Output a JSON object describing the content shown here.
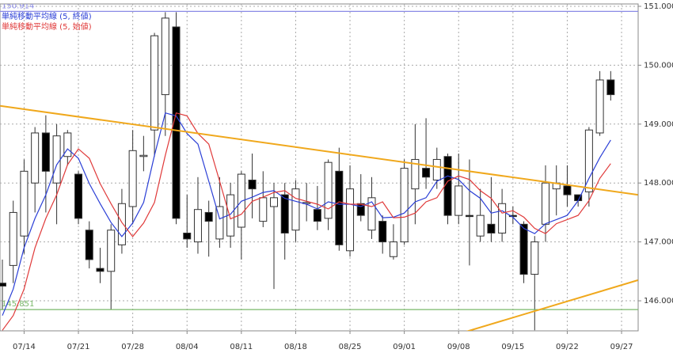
{
  "chart_data": {
    "type": "candlestick",
    "categories": [
      null,
      null,
      "07/14",
      null,
      null,
      null,
      null,
      "07/21",
      null,
      null,
      null,
      null,
      "07/28",
      null,
      null,
      null,
      null,
      "08/04",
      null,
      null,
      null,
      null,
      "08/11",
      null,
      null,
      null,
      null,
      "08/18",
      null,
      null,
      null,
      null,
      "08/25",
      null,
      null,
      null,
      null,
      "09/01",
      null,
      null,
      null,
      null,
      "09/08",
      null,
      null,
      null,
      null,
      "09/15",
      null,
      null,
      null,
      null,
      "09/22",
      null,
      null,
      null,
      null,
      "09/27"
    ],
    "open": [
      146.3,
      146.6,
      147.1,
      148.0,
      148.85,
      148.0,
      148.45,
      148.15,
      147.2,
      146.55,
      146.5,
      146.95,
      147.6,
      148.45,
      148.9,
      149.5,
      150.65,
      147.15,
      147.0,
      147.5,
      147.05,
      147.1,
      147.25,
      148.05,
      147.35,
      147.6,
      147.8,
      147.2,
      147.65,
      147.55,
      147.4,
      148.2,
      146.85,
      147.65,
      147.2,
      147.35,
      146.75,
      147.0,
      147.9,
      148.25,
      148.05,
      148.45,
      147.45,
      147.45,
      147.1,
      147.3,
      147.15,
      147.45,
      147.3,
      146.45,
      147.3,
      147.9,
      147.95,
      147.8,
      147.85,
      148.85,
      149.75,
      null
    ],
    "high": [
      146.7,
      147.7,
      148.4,
      148.95,
      149.15,
      149.0,
      148.9,
      148.2,
      147.35,
      146.9,
      147.3,
      147.9,
      148.9,
      148.8,
      150.55,
      150.9,
      150.9,
      147.8,
      148.1,
      147.7,
      148.1,
      148.0,
      148.2,
      148.5,
      148.2,
      148.0,
      148.0,
      148.05,
      148.0,
      147.95,
      148.4,
      148.6,
      148.3,
      148.15,
      148.1,
      147.45,
      147.3,
      148.4,
      149.0,
      149.1,
      148.6,
      148.5,
      148.5,
      148.4,
      147.9,
      148.1,
      147.9,
      147.6,
      147.35,
      147.1,
      148.3,
      148.3,
      148.3,
      147.8,
      148.95,
      149.9,
      149.9,
      null
    ],
    "low": [
      145.85,
      146.3,
      146.8,
      147.5,
      147.5,
      147.3,
      148.3,
      147.3,
      146.55,
      146.3,
      145.85,
      146.8,
      147.3,
      148.2,
      148.45,
      148.8,
      147.3,
      146.9,
      146.8,
      146.75,
      146.9,
      146.9,
      146.7,
      147.4,
      147.25,
      146.2,
      146.7,
      147.0,
      147.35,
      147.2,
      147.2,
      146.85,
      146.75,
      147.35,
      147.05,
      146.8,
      146.7,
      146.95,
      147.3,
      147.9,
      147.9,
      147.3,
      147.3,
      146.6,
      147.0,
      147.0,
      147.0,
      147.3,
      146.3,
      145.5,
      147.0,
      147.45,
      147.6,
      147.6,
      147.6,
      148.8,
      149.4,
      null
    ],
    "close": [
      146.25,
      147.5,
      148.2,
      148.85,
      148.2,
      148.8,
      148.85,
      147.4,
      146.7,
      146.5,
      147.2,
      147.65,
      148.55,
      148.47,
      150.5,
      150.8,
      147.4,
      147.05,
      147.55,
      147.35,
      147.6,
      147.8,
      148.15,
      147.9,
      147.75,
      147.75,
      147.15,
      147.9,
      147.67,
      147.35,
      148.35,
      146.95,
      147.9,
      147.45,
      147.75,
      147.0,
      147.0,
      148.25,
      148.4,
      148.1,
      148.4,
      147.45,
      147.95,
      147.43,
      147.45,
      147.15,
      147.65,
      147.43,
      146.45,
      147.0,
      148.0,
      148.0,
      147.8,
      147.7,
      148.9,
      149.75,
      149.5,
      null
    ],
    "up_color": "#ffffff",
    "down_color": "#000000",
    "series": [
      {
        "name": "単純移動平均線 (5, 終値)",
        "color": "#2b3fd6",
        "values": [
          145.75,
          146.2,
          146.9,
          147.4,
          147.8,
          148.31,
          148.58,
          148.42,
          147.99,
          147.65,
          147.33,
          147.09,
          147.32,
          147.67,
          148.47,
          149.19,
          149.14,
          148.84,
          148.66,
          148.03,
          147.39,
          147.47,
          147.69,
          147.76,
          147.84,
          147.87,
          147.74,
          147.69,
          147.64,
          147.56,
          147.68,
          147.64,
          147.64,
          147.6,
          147.68,
          147.41,
          147.42,
          147.49,
          147.68,
          147.75,
          148.03,
          148.12,
          148.06,
          147.87,
          147.74,
          147.49,
          147.53,
          147.42,
          147.23,
          147.14,
          147.31,
          147.38,
          147.45,
          147.7,
          148.08,
          148.43,
          148.73,
          null
        ]
      },
      {
        "name": "単純移動平均線 (5, 始値)",
        "color": "#e03a3a",
        "values": [
          145.5,
          145.75,
          146.2,
          146.9,
          147.4,
          147.8,
          148.31,
          148.58,
          148.42,
          147.99,
          147.65,
          147.33,
          147.09,
          147.32,
          147.67,
          148.47,
          149.19,
          149.14,
          148.84,
          148.66,
          148.03,
          147.39,
          147.47,
          147.69,
          147.76,
          147.84,
          147.87,
          147.74,
          147.69,
          147.64,
          147.56,
          147.68,
          147.64,
          147.64,
          147.6,
          147.68,
          147.41,
          147.42,
          147.49,
          147.68,
          147.75,
          148.03,
          148.12,
          148.06,
          147.87,
          147.74,
          147.49,
          147.53,
          147.42,
          147.23,
          147.14,
          147.31,
          147.38,
          147.45,
          147.7,
          148.08,
          148.33,
          null
        ]
      }
    ],
    "hlines": [
      {
        "value": 150.914,
        "color": "#8a8ae6"
      },
      {
        "value": 145.851,
        "color": "#7ab86a"
      }
    ],
    "trend_lines": [
      {
        "color": "#f0a81c",
        "start": [
          -0.2,
          149.31
        ],
        "end": [
          58.5,
          147.8
        ]
      },
      {
        "color": "#f0a81c",
        "start": [
          41.3,
          145.4
        ],
        "end": [
          58.5,
          146.35
        ]
      }
    ],
    "ylim": [
      145.49,
      151.04
    ],
    "yticks": [
      {
        "value": 146,
        "label": "146.000"
      },
      {
        "value": 147,
        "label": "147.000"
      },
      {
        "value": 148,
        "label": "148.000"
      },
      {
        "value": 149,
        "label": "149.000"
      },
      {
        "value": 150,
        "label": "150.000"
      },
      {
        "value": 151,
        "label": "151.000"
      }
    ],
    "grid": true
  }
}
